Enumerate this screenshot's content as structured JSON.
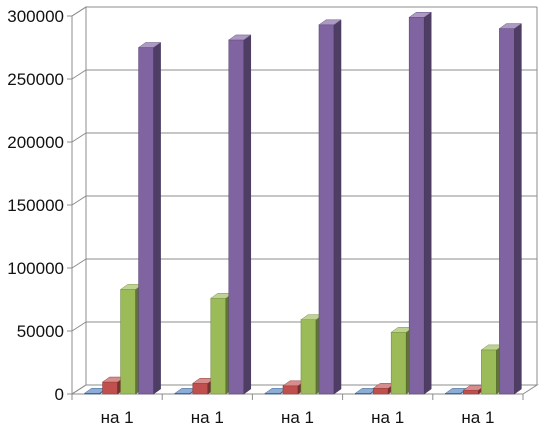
{
  "chart_data": {
    "type": "bar",
    "style": "3d-clustered-column",
    "categories": [
      "на 1",
      "на 1",
      "на 1",
      "на 1",
      "на 1"
    ],
    "series": [
      {
        "values": [
          600,
          500,
          500,
          500,
          500
        ],
        "color": "#4f81bd"
      },
      {
        "values": [
          9500,
          8500,
          6500,
          4500,
          3000
        ],
        "color": "#c0504d"
      },
      {
        "values": [
          83000,
          76000,
          59000,
          49000,
          35000
        ],
        "color": "#9bbb59"
      },
      {
        "values": [
          275000,
          281000,
          293000,
          299000,
          290000
        ],
        "color": "#8064a2"
      }
    ],
    "ylim": [
      0,
      300000
    ],
    "yticks": [
      "0",
      "50000",
      "100000",
      "150000",
      "200000",
      "250000",
      "300000"
    ],
    "grid": true,
    "legend": "none",
    "title": "",
    "xlabel": "",
    "ylabel": ""
  }
}
